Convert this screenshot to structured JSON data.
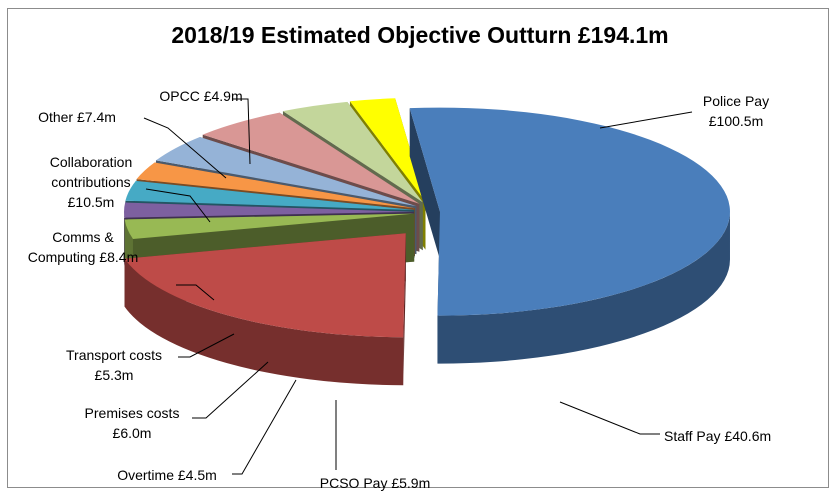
{
  "chart_data": {
    "type": "pie",
    "style": "3d-exploded",
    "title": "2018/19 Estimated Objective Outturn £194.1m",
    "slices": [
      {
        "name": "Police Pay",
        "value": 100.5,
        "label_lines": [
          "Police Pay",
          "£100.5m"
        ],
        "color": "#4a7ebb"
      },
      {
        "name": "Staff Pay",
        "value": 40.6,
        "label_lines": [
          "Staff Pay  £40.6m"
        ],
        "color": "#be4b48"
      },
      {
        "name": "PCSO Pay",
        "value": 5.9,
        "label_lines": [
          "PCSO Pay  £5.9m"
        ],
        "color": "#98b954"
      },
      {
        "name": "Overtime",
        "value": 4.5,
        "label_lines": [
          "Overtime  £4.5m"
        ],
        "color": "#7d60a0"
      },
      {
        "name": "Premises costs",
        "value": 6.0,
        "label_lines": [
          "Premises costs",
          "£6.0m"
        ],
        "color": "#46aac5"
      },
      {
        "name": "Transport costs",
        "value": 5.3,
        "label_lines": [
          "Transport costs",
          "£5.3m"
        ],
        "color": "#f79646"
      },
      {
        "name": "Comms & Computing",
        "value": 8.4,
        "label_lines": [
          "Comms &",
          "Computing  £8.4m"
        ],
        "color": "#95b3d7"
      },
      {
        "name": "Collaboration contributions",
        "value": 10.5,
        "label_lines": [
          "Collaboration",
          "contributions",
          "£10.5m"
        ],
        "color": "#d99795"
      },
      {
        "name": "Other",
        "value": 7.4,
        "label_lines": [
          "Other  £7.4m"
        ],
        "color": "#c3d69b"
      },
      {
        "name": "OPCC",
        "value": 4.9,
        "label_lines": [
          "OPCC  £4.9m"
        ],
        "color": "#ffff00"
      }
    ],
    "legend": "none"
  }
}
